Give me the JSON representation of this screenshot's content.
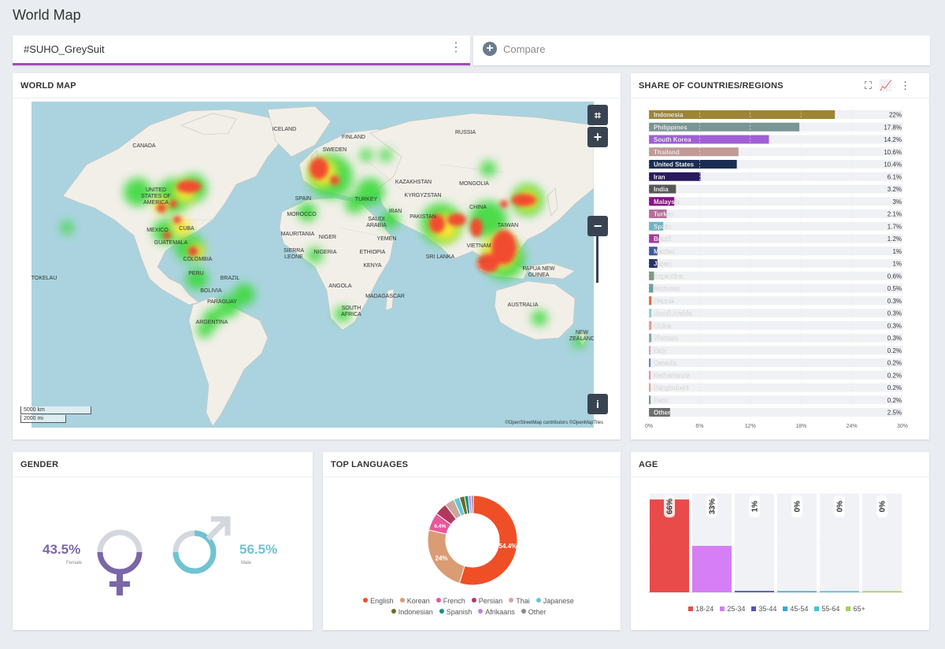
{
  "page": {
    "title": "World Map"
  },
  "tabs": {
    "active_label": "#SUHO_GreySuit",
    "more_icon": "vertical-dots-icon",
    "compare_label": "Compare",
    "compare_icon": "plus-circle-icon"
  },
  "map": {
    "title": "WORLD MAP",
    "zoom_in": "+",
    "zoom_out": "−",
    "crop_icon": "crop-icon",
    "info_icon": "info-icon",
    "scale_km": "5000 km",
    "scale_mi": "2000 mi",
    "attribution": "©OpenStreetMap contributors ©OpenMapTiles",
    "labels": [
      "CANADA",
      "UNITED",
      "STATES OF",
      "AMERICA",
      "ICELAND",
      "FINLAND",
      "SWEDEN",
      "RUSSIA",
      "KAZAKHSTAN",
      "MONGOLIA",
      "KYRGYZSTAN",
      "CHINA",
      "TAIWAN",
      "MOROCCO",
      "MAURITANIA",
      "NIGER",
      "SIERRA",
      "LEONE",
      "NIGERIA",
      "ETHIOPIA",
      "KENYA",
      "ANGOLA",
      "SOUTH",
      "AFRICA",
      "MADAGASCAR",
      "SAUDI",
      "ARABIA",
      "YEMEN",
      "IRAN",
      "PAKISTAN",
      "SRI LANKA",
      "VIETNAM",
      "PAPUA NEW",
      "GUINEA",
      "AUSTRALIA",
      "NEW",
      "ZEALAND",
      "MEXICO",
      "CUBA",
      "GUATEMALA",
      "COLOMBIA",
      "PERU",
      "BRAZIL",
      "BOLIVIA",
      "PARAGUAY",
      "ARGENTINA",
      "TOKELAU",
      "SPAIN",
      "TURKEY"
    ]
  },
  "share": {
    "title": "SHARE OF COUNTRIES/REGIONS",
    "icons": [
      "fullscreen-icon",
      "line-chart-icon",
      "vertical-dots-icon"
    ]
  },
  "chart_data": [
    {
      "type": "bar",
      "orientation": "horizontal",
      "title": "SHARE OF COUNTRIES/REGIONS",
      "categories": [
        "Indonesia",
        "Philippines",
        "South Korea",
        "Thailand",
        "United States",
        "Iran",
        "India",
        "Malaysia",
        "Turkey",
        "Spain",
        "Brazil",
        "Mexico",
        "Japan",
        "Argentina",
        "Morocco",
        "France",
        "Saudi Arabia",
        "China",
        "Vietnam",
        "Italy",
        "Canada",
        "Netherlands",
        "Bangladesh",
        "Peru",
        "Other"
      ],
      "values": [
        22,
        17.8,
        14.2,
        10.6,
        10.4,
        6.1,
        3.2,
        3,
        2.1,
        1.7,
        1.2,
        1,
        1,
        0.6,
        0.5,
        0.3,
        0.3,
        0.3,
        0.3,
        0.2,
        0.2,
        0.2,
        0.2,
        0.2,
        2.5
      ],
      "value_labels": [
        "22%",
        "17.8%",
        "14.2%",
        "10.6%",
        "10.4%",
        "6.1%",
        "3.2%",
        "3%",
        "2.1%",
        "1.7%",
        "1.2%",
        "1%",
        "1%",
        "0.6%",
        "0.5%",
        "0.3%",
        "0.3%",
        "0.3%",
        "0.3%",
        "0.2%",
        "0.2%",
        "0.2%",
        "0.2%",
        "0.2%",
        "2.5%"
      ],
      "colors": [
        "#9c8535",
        "#7a9694",
        "#a05fd6",
        "#c09a96",
        "#1b2d52",
        "#2a1a5e",
        "#575757",
        "#8a0f8a",
        "#b86d9b",
        "#6fb2c9",
        "#a43a9c",
        "#3b5aa0",
        "#25336b",
        "#7d9a84",
        "#6b9e9e",
        "#e06b45",
        "#8fcfcc",
        "#e89a86",
        "#8aa6a0",
        "#d29ac2",
        "#5d7ac8",
        "#ea8aa2",
        "#d4a294",
        "#6f8a8f",
        "#6d6d6d"
      ],
      "xticks": [
        "0%",
        "6%",
        "12%",
        "18%",
        "24%",
        "30%"
      ],
      "xlim": [
        0,
        30
      ]
    },
    {
      "type": "pie",
      "title": "TOP LANGUAGES",
      "categories": [
        "English",
        "Korean",
        "French",
        "Persian",
        "Thai",
        "Japanese",
        "Indonesian",
        "Spanish",
        "Afrikaans",
        "Other"
      ],
      "values": [
        54.4,
        24,
        6.4,
        4.5,
        3.5,
        2.2,
        1.8,
        1.4,
        1,
        0.8
      ],
      "slice_labels": [
        "54.4%",
        "24%",
        "6.4%",
        "",
        "",
        "",
        "",
        "",
        "",
        ""
      ],
      "colors": [
        "#ef4f27",
        "#d99c73",
        "#e8589c",
        "#b03a5e",
        "#c9a8a0",
        "#62c9d6",
        "#6e6a22",
        "#188f83",
        "#c87ee0",
        "#888888"
      ]
    },
    {
      "type": "bar",
      "title": "AGE",
      "categories": [
        "18-24",
        "25-34",
        "35-44",
        "45-54",
        "55-64",
        "65+"
      ],
      "values": [
        66,
        33,
        1,
        0,
        0,
        0
      ],
      "value_labels": [
        "66%",
        "33%",
        "1%",
        "0%",
        "0%",
        "0%"
      ],
      "colors": [
        "#e94a4a",
        "#d57ef5",
        "#4d55b8",
        "#3aa6e0",
        "#3cc7d8",
        "#a6d05a"
      ],
      "ylim": [
        0,
        70
      ]
    }
  ],
  "gender": {
    "title": "GENDER",
    "female": {
      "percent": "43.5%",
      "label": "Female",
      "color": "#7a66a8"
    },
    "male": {
      "percent": "56.5%",
      "label": "Male",
      "color": "#6fc3d3"
    }
  },
  "languages": {
    "title": "TOP LANGUAGES"
  },
  "age": {
    "title": "AGE"
  }
}
